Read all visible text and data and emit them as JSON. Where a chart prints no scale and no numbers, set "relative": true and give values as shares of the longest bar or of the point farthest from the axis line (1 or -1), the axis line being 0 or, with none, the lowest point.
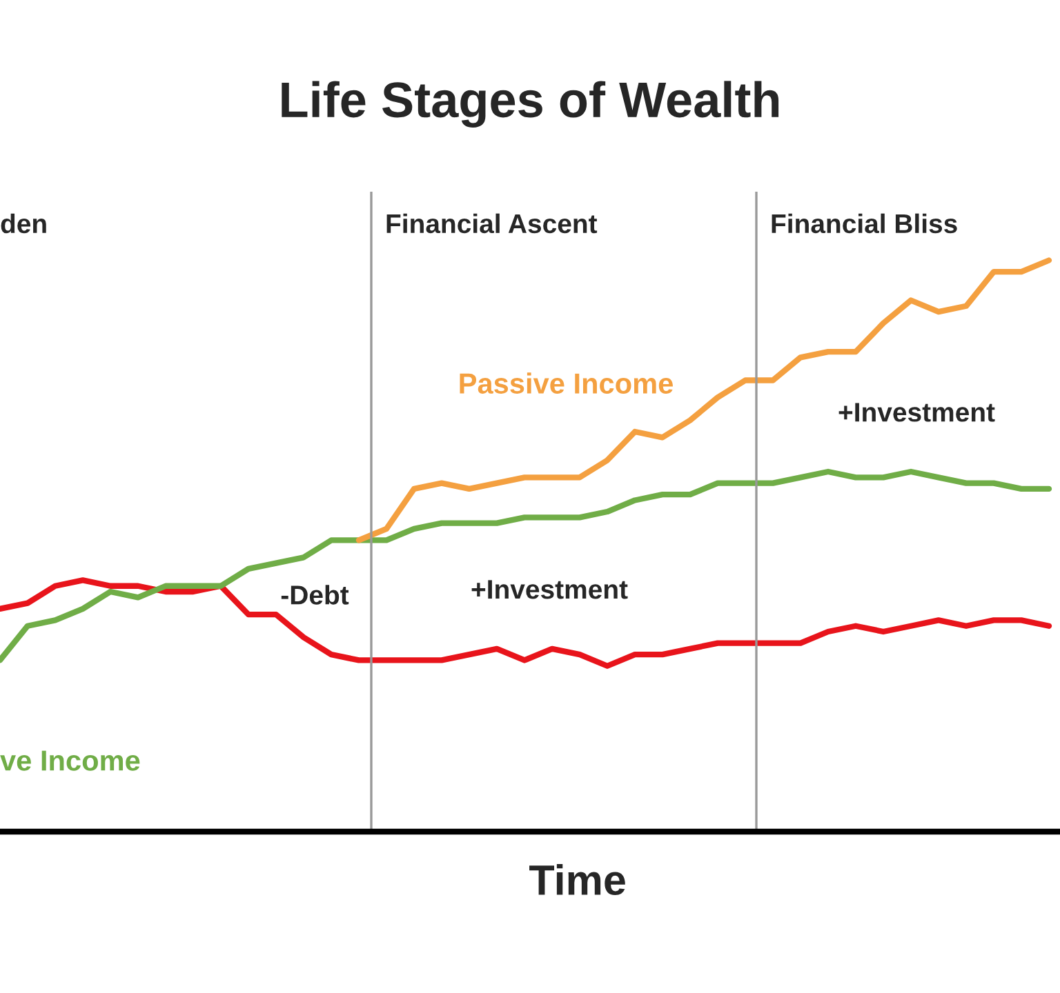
{
  "chart_data": {
    "type": "line",
    "title": "Life Stages of Wealth",
    "xlabel": "Time",
    "relative": true,
    "categories": [
      null,
      null,
      null,
      null,
      null,
      null,
      null,
      null,
      null,
      null,
      null,
      null,
      null,
      null,
      null,
      null,
      null,
      null,
      null,
      null,
      null,
      null,
      null,
      null,
      null,
      null,
      null,
      null,
      null,
      null,
      null,
      null,
      null,
      null,
      null,
      null,
      null,
      null,
      null
    ],
    "series": [
      {
        "color": "#e8141b",
        "values": [
          0.39,
          0.4,
          0.43,
          0.44,
          0.43,
          0.43,
          0.42,
          0.42,
          0.43,
          0.38,
          0.38,
          0.34,
          0.31,
          0.3,
          0.3,
          0.3,
          0.3,
          0.31,
          0.32,
          0.3,
          0.32,
          0.31,
          0.29,
          0.31,
          0.31,
          0.32,
          0.33,
          0.33,
          0.33,
          0.33,
          0.35,
          0.36,
          0.35,
          0.36,
          0.37,
          0.36,
          0.37,
          0.37,
          0.36
        ]
      },
      {
        "name": "ve Income",
        "color": "#70ad47",
        "values": [
          0.3,
          0.36,
          0.37,
          0.39,
          0.42,
          0.41,
          0.43,
          0.43,
          0.43,
          0.46,
          0.47,
          0.48,
          0.51,
          0.51,
          0.51,
          0.53,
          0.54,
          0.54,
          0.54,
          0.55,
          0.55,
          0.55,
          0.56,
          0.58,
          0.59,
          0.59,
          0.61,
          0.61,
          0.61,
          0.62,
          0.63,
          0.62,
          0.62,
          0.63,
          0.62,
          0.61,
          0.61,
          0.6,
          0.6
        ]
      },
      {
        "name": "Passive Income",
        "color": "#f4a040",
        "values": [
          null,
          null,
          null,
          null,
          null,
          null,
          null,
          null,
          null,
          null,
          null,
          null,
          null,
          0.51,
          0.53,
          0.6,
          0.61,
          0.6,
          0.61,
          0.62,
          0.62,
          0.62,
          0.65,
          0.7,
          0.69,
          0.72,
          0.76,
          0.79,
          0.79,
          0.83,
          0.84,
          0.84,
          0.89,
          0.93,
          0.91,
          0.92,
          0.98,
          0.98,
          1.0
        ]
      }
    ],
    "annotations": [
      "den",
      "-Debt",
      "+Investment",
      "+Investment",
      "Financial Ascent",
      "Financial Bliss"
    ]
  }
}
